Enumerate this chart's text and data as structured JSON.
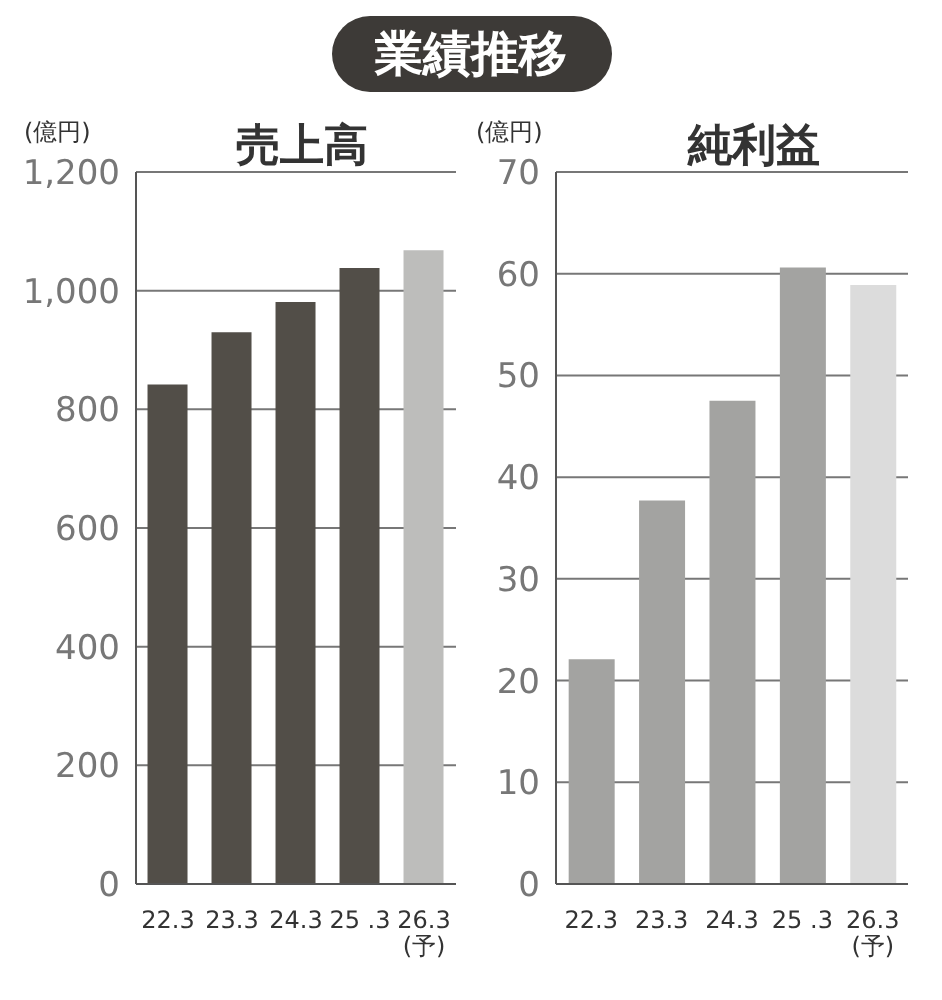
{
  "chart_data": [
    {
      "type": "bar",
      "title": "売上高",
      "ylabel": "(億円)",
      "annotations": [
        "業績推移"
      ],
      "categories": [
        "22.3",
        "23.3",
        "24.3",
        "25 .3",
        "26.3(予)"
      ],
      "values": [
        842,
        930,
        981,
        1038,
        1068
      ],
      "colors": [
        "#524e48",
        "#524e48",
        "#524e48",
        "#524e48",
        "#bdbdbb"
      ],
      "ylim": [
        0,
        1200
      ],
      "yticks": [
        0,
        200,
        400,
        600,
        800,
        {
          "value": 1000,
          "label": "1,000"
        },
        {
          "value": 1200,
          "label": "1,200"
        }
      ],
      "grid": "y"
    },
    {
      "type": "bar",
      "title": "純利益",
      "ylabel": "(億円)",
      "categories": [
        "22.3",
        "23.3",
        "24.3",
        "25 .3",
        "26.3(予)"
      ],
      "values": [
        22.1,
        37.7,
        47.5,
        60.6,
        58.9
      ],
      "colors": [
        "#a3a3a1",
        "#a3a3a1",
        "#a3a3a1",
        "#a3a3a1",
        "#dcdcdc"
      ],
      "ylim": [
        0,
        70
      ],
      "yticks": [
        0,
        10,
        20,
        30,
        40,
        50,
        60,
        70
      ],
      "grid": "y"
    }
  ]
}
